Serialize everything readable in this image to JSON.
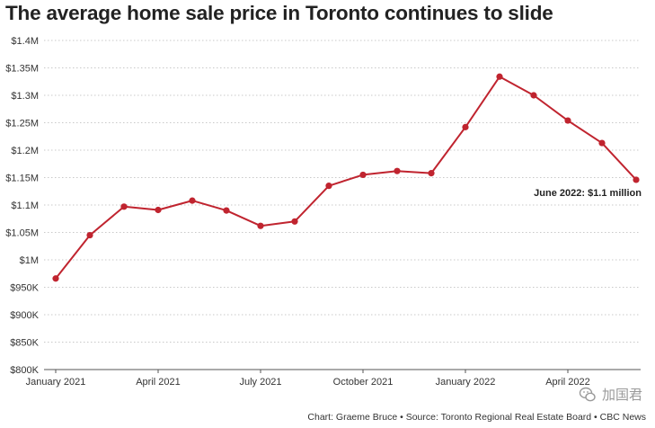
{
  "chart_data": {
    "type": "line",
    "title": "The average home sale price in Toronto continues to slide",
    "xlabel": "",
    "ylabel": "",
    "x": [
      "Jan 2021",
      "Feb 2021",
      "Mar 2021",
      "Apr 2021",
      "May 2021",
      "Jun 2021",
      "Jul 2021",
      "Aug 2021",
      "Sep 2021",
      "Oct 2021",
      "Nov 2021",
      "Dec 2021",
      "Jan 2022",
      "Feb 2022",
      "Mar 2022",
      "Apr 2022",
      "May 2022",
      "Jun 2022"
    ],
    "series": [
      {
        "name": "Average home sale price",
        "color": "#c0242f",
        "values": [
          966000,
          1045000,
          1097000,
          1091000,
          1108000,
          1090000,
          1062000,
          1070000,
          1135000,
          1155000,
          1162000,
          1158000,
          1242000,
          1334000,
          1300000,
          1254000,
          1213000,
          1146000
        ]
      }
    ],
    "ylim": [
      800000,
      1400000
    ],
    "yticks": [
      800000,
      850000,
      900000,
      950000,
      1000000,
      1050000,
      1100000,
      1150000,
      1200000,
      1250000,
      1300000,
      1350000,
      1400000
    ],
    "yticklabels": [
      "$800K",
      "$850K",
      "$900K",
      "$950K",
      "$1M",
      "$1.05M",
      "$1.1M",
      "$1.15M",
      "$1.2M",
      "$1.25M",
      "$1.3M",
      "$1.35M",
      "$1.4M"
    ],
    "xticks": [
      {
        "index": 0,
        "label": "January 2021"
      },
      {
        "index": 3,
        "label": "April 2021"
      },
      {
        "index": 6,
        "label": "July 2021"
      },
      {
        "index": 9,
        "label": "October 2021"
      },
      {
        "index": 12,
        "label": "January 2022"
      },
      {
        "index": 15,
        "label": "April 2022"
      }
    ],
    "grid": true,
    "annotation": {
      "index": 17,
      "text": "June 2022: $1.1 million"
    }
  },
  "footer": "Chart: Graeme Bruce • Source: Toronto Regional Real Estate Board • CBC News",
  "watermark": "加国君"
}
